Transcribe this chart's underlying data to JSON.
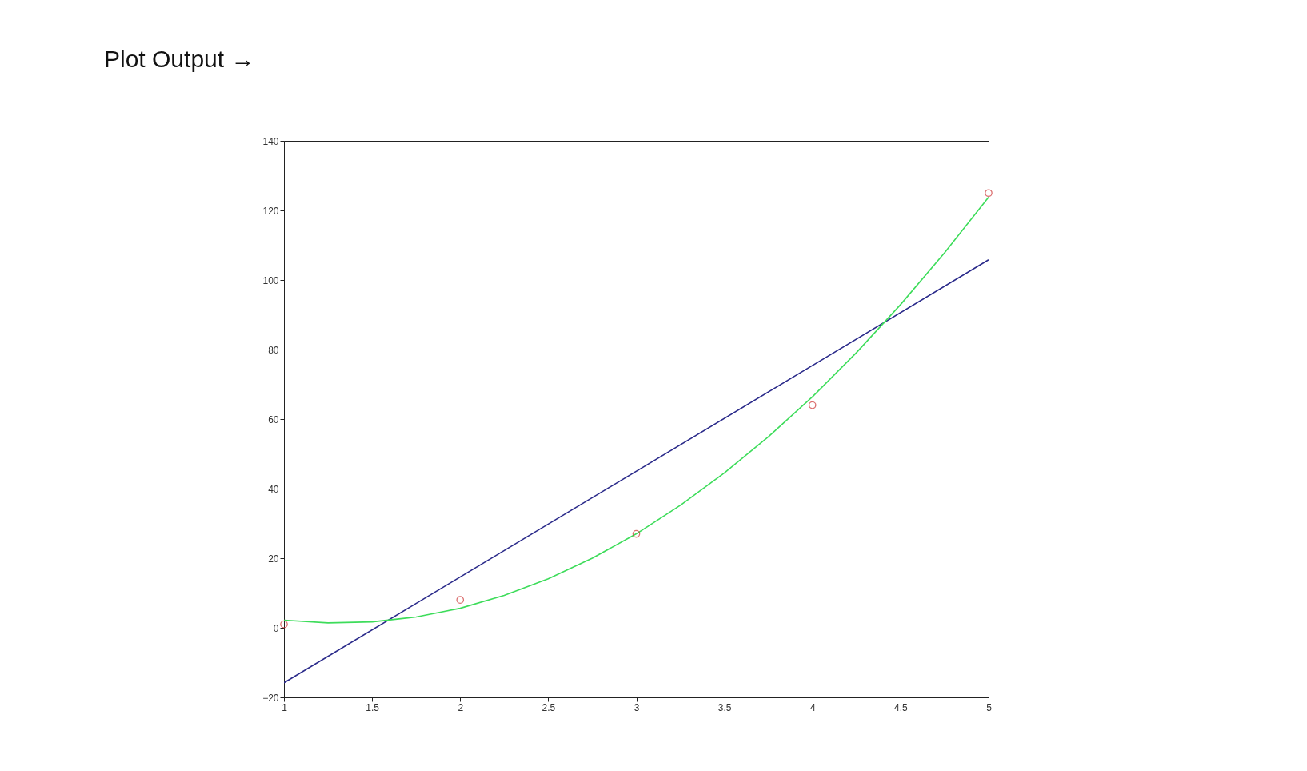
{
  "chart_data": {
    "type": "line",
    "title": "Plot Output →",
    "xlim": [
      1,
      5
    ],
    "xticks": [
      1,
      1.5,
      2,
      2.5,
      3,
      3.5,
      4,
      4.5,
      5
    ],
    "ylim": [
      -20,
      140
    ],
    "yticks": [
      -20,
      0,
      20,
      40,
      60,
      80,
      100,
      120,
      140
    ],
    "grid": false,
    "series": [
      {
        "color": "#2a2a8a",
        "x": [
          1,
          5
        ],
        "values": [
          -15.8,
          105.8
        ]
      },
      {
        "color": "#3ddc5a",
        "x": [
          1,
          1.25,
          1.5,
          1.75,
          2,
          2.25,
          2.5,
          2.75,
          3,
          3.25,
          3.5,
          3.75,
          4,
          4.25,
          4.5,
          4.75,
          5
        ],
        "values": [
          2.2,
          1.4,
          1.7,
          3.1,
          5.6,
          9.3,
          14.1,
          20,
          27,
          35.2,
          44.5,
          54.9,
          66.4,
          79.1,
          92.9,
          107.8,
          123.8
        ]
      },
      {
        "type": "scatter",
        "color": "#cc3333",
        "x": [
          1,
          2,
          3,
          4,
          5
        ],
        "values": [
          1,
          8,
          27,
          64,
          125
        ]
      }
    ]
  }
}
